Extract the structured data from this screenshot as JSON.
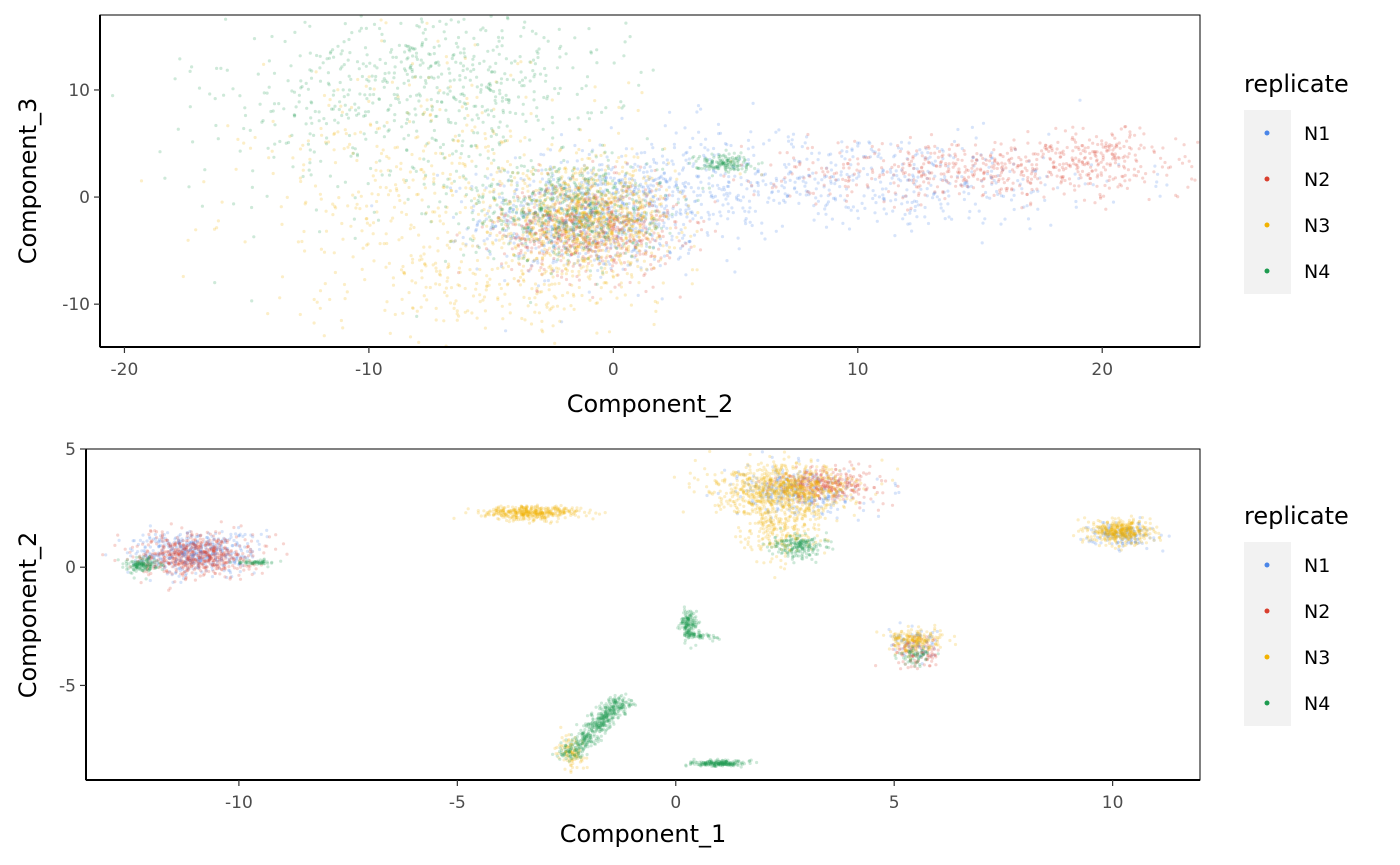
{
  "chart_data": [
    {
      "type": "scatter",
      "xlabel": "Component_2",
      "ylabel": "Component_3",
      "xlim": [
        -21,
        24
      ],
      "ylim": [
        -14,
        17
      ],
      "x_ticks": [
        -20,
        -10,
        0,
        10,
        20
      ],
      "x_tick_labels": [
        "-20",
        "-10",
        "0",
        "10",
        "20"
      ],
      "y_ticks": [
        -10,
        0,
        10
      ],
      "y_tick_labels": [
        "-10",
        "0",
        "10"
      ],
      "grid": false,
      "legend": {
        "title": "replicate",
        "placement": "right",
        "entries": [
          {
            "name": "N1",
            "color": "#4A86E8"
          },
          {
            "name": "N2",
            "color": "#D93F2E"
          },
          {
            "name": "N3",
            "color": "#F2B200"
          },
          {
            "name": "N4",
            "color": "#1E9B50"
          }
        ]
      },
      "series": [
        {
          "name": "N1",
          "color": "#4A86E8",
          "clusters": [
            {
              "cx": -1,
              "cy": -2,
              "sx": 2.2,
              "sy": 2.5,
              "n": 700
            },
            {
              "cx": 10,
              "cy": 1.5,
              "sx": 5.5,
              "sy": 2.2,
              "n": 500
            },
            {
              "cx": 3,
              "cy": 1,
              "sx": 2.5,
              "sy": 3,
              "n": 200
            }
          ]
        },
        {
          "name": "N2",
          "color": "#D93F2E",
          "clusters": [
            {
              "cx": -1,
              "cy": -3,
              "sx": 1.8,
              "sy": 2.2,
              "n": 600
            },
            {
              "cx": 15,
              "cy": 2.5,
              "sx": 4.5,
              "sy": 1.4,
              "n": 500
            },
            {
              "cx": 20,
              "cy": 4,
              "sx": 1.5,
              "sy": 1.2,
              "n": 150
            }
          ]
        },
        {
          "name": "N3",
          "color": "#F2B200",
          "clusters": [
            {
              "cx": -1,
              "cy": -2,
              "sx": 1.7,
              "sy": 2.3,
              "n": 900
            },
            {
              "cx": -7,
              "cy": 0,
              "sx": 4,
              "sy": 6,
              "n": 500
            },
            {
              "cx": -4,
              "cy": -8,
              "sx": 3,
              "sy": 2.5,
              "n": 200
            }
          ]
        },
        {
          "name": "N4",
          "color": "#1E9B50",
          "clusters": [
            {
              "cx": -7,
              "cy": 11,
              "sx": 3.5,
              "sy": 3.5,
              "n": 500
            },
            {
              "cx": -2,
              "cy": -1,
              "sx": 2,
              "sy": 2.5,
              "n": 500
            },
            {
              "cx": 4.5,
              "cy": 3.2,
              "sx": 0.6,
              "sy": 0.4,
              "n": 150
            },
            {
              "cx": -12,
              "cy": 6,
              "sx": 4,
              "sy": 5,
              "n": 150
            }
          ]
        }
      ]
    },
    {
      "type": "scatter",
      "xlabel": "Component_1",
      "ylabel": "Component_2",
      "xlim": [
        -13.5,
        12
      ],
      "ylim": [
        -9,
        5
      ],
      "x_ticks": [
        -10,
        -5,
        0,
        5,
        10
      ],
      "x_tick_labels": [
        "-10",
        "-5",
        "0",
        "5",
        "10"
      ],
      "y_ticks": [
        -5,
        0,
        5
      ],
      "y_tick_labels": [
        "-5",
        "0",
        "5"
      ],
      "grid": false,
      "legend": {
        "title": "replicate",
        "placement": "right",
        "entries": [
          {
            "name": "N1",
            "color": "#4A86E8"
          },
          {
            "name": "N2",
            "color": "#D93F2E"
          },
          {
            "name": "N3",
            "color": "#F2B200"
          },
          {
            "name": "N4",
            "color": "#1E9B50"
          }
        ]
      },
      "series": [
        {
          "name": "N1",
          "color": "#4A86E8",
          "clusters": [
            {
              "cx": -11,
              "cy": 0.6,
              "sx": 0.7,
              "sy": 0.45,
              "n": 500
            },
            {
              "cx": 2.8,
              "cy": 3.2,
              "sx": 0.7,
              "sy": 0.5,
              "n": 300
            },
            {
              "cx": 10.2,
              "cy": 1.4,
              "sx": 0.35,
              "sy": 0.25,
              "n": 150
            },
            {
              "cx": 5.5,
              "cy": -3.3,
              "sx": 0.3,
              "sy": 0.3,
              "n": 80
            }
          ]
        },
        {
          "name": "N2",
          "color": "#D93F2E",
          "clusters": [
            {
              "cx": -11,
              "cy": 0.5,
              "sx": 0.65,
              "sy": 0.45,
              "n": 600
            },
            {
              "cx": 3.5,
              "cy": 3.5,
              "sx": 0.6,
              "sy": 0.35,
              "n": 300
            },
            {
              "cx": 5.5,
              "cy": -3.6,
              "sx": 0.3,
              "sy": 0.35,
              "n": 100
            }
          ]
        },
        {
          "name": "N3",
          "color": "#F2B200",
          "clusters": [
            {
              "cx": -3.3,
              "cy": 2.3,
              "sx": 0.55,
              "sy": 0.15,
              "n": 400
            },
            {
              "cx": 2.5,
              "cy": 3.3,
              "sx": 0.8,
              "sy": 0.5,
              "n": 800
            },
            {
              "cx": 2.4,
              "cy": 1.8,
              "sx": 0.45,
              "sy": 0.8,
              "n": 300
            },
            {
              "cx": 10.2,
              "cy": 1.5,
              "sx": 0.35,
              "sy": 0.25,
              "n": 400
            },
            {
              "cx": 5.5,
              "cy": -3.1,
              "sx": 0.3,
              "sy": 0.25,
              "n": 200
            },
            {
              "cx": -2.4,
              "cy": -7.8,
              "sx": 0.15,
              "sy": 0.35,
              "n": 100
            }
          ]
        },
        {
          "name": "N4",
          "color": "#1E9B50",
          "clusters": [
            {
              "cx": -12.2,
              "cy": 0.1,
              "sx": 0.18,
              "sy": 0.15,
              "n": 150
            },
            {
              "cx": -9.6,
              "cy": 0.2,
              "sx": 0.2,
              "sy": 0.05,
              "n": 60
            },
            {
              "cx": 2.8,
              "cy": 0.9,
              "sx": 0.3,
              "sy": 0.25,
              "n": 200
            },
            {
              "cx": 0.3,
              "cy": -2.4,
              "sx": 0.1,
              "sy": 0.3,
              "n": 150
            },
            {
              "cx": 1.0,
              "cy": -8.3,
              "sx": 0.3,
              "sy": 0.06,
              "n": 200
            },
            {
              "cx": 5.5,
              "cy": -3.7,
              "sx": 0.2,
              "sy": 0.25,
              "n": 60
            }
          ],
          "lines": [
            {
              "from": [
                -2.5,
                -8.0
              ],
              "to": [
                -1.2,
                -5.6
              ],
              "spread": 0.15,
              "n": 500
            },
            {
              "from": [
                0.2,
                -2.8
              ],
              "to": [
                0.9,
                -3.0
              ],
              "spread": 0.07,
              "n": 60
            }
          ]
        }
      ]
    }
  ]
}
